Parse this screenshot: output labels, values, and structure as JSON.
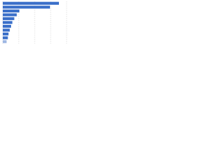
{
  "chart_data": {
    "type": "hbar",
    "categories": [
      null,
      null,
      null,
      null,
      null,
      null,
      null,
      null,
      null,
      null,
      null
    ],
    "values": [
      88,
      74,
      26,
      22,
      18,
      15,
      13,
      11,
      9,
      8,
      6
    ],
    "colors": [
      "#3a6fc9",
      "#3a6fc9",
      "#3a6fc9",
      "#3a6fc9",
      "#3a6fc9",
      "#3a6fc9",
      "#3a6fc9",
      "#3a6fc9",
      "#3a6fc9",
      "#3a6fc9",
      "#9db6e3"
    ],
    "xlim": [
      0,
      100
    ],
    "xticks": [
      0,
      25,
      50,
      75,
      100
    ],
    "grid": true
  }
}
